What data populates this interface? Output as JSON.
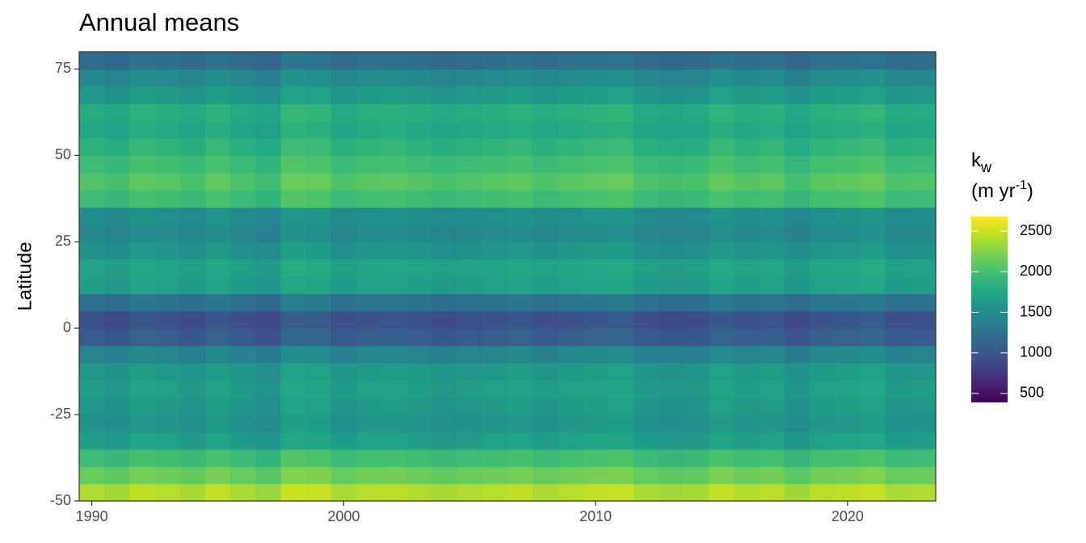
{
  "chart_data": {
    "type": "heatmap",
    "title": "Annual means",
    "y_label": "Latitude",
    "legend_title": {
      "main": "k",
      "sub": "w",
      "line2": "(m yr",
      "sup": "-1",
      "close": ")"
    },
    "x": [
      1990,
      1991,
      1992,
      1993,
      1994,
      1995,
      1996,
      1997,
      1998,
      1999,
      2000,
      2001,
      2002,
      2003,
      2004,
      2005,
      2006,
      2007,
      2008,
      2009,
      2010,
      2011,
      2012,
      2013,
      2014,
      2015,
      2016,
      2017,
      2018,
      2019,
      2020,
      2021,
      2022,
      2023
    ],
    "y": [
      -47.5,
      -42.5,
      -37.5,
      -32.5,
      -27.5,
      -22.5,
      -17.5,
      -12.5,
      -7.5,
      -2.5,
      2.5,
      7.5,
      12.5,
      17.5,
      22.5,
      27.5,
      32.5,
      37.5,
      42.5,
      47.5,
      52.5,
      57.5,
      62.5,
      67.5,
      72.5,
      77.5
    ],
    "values": [
      [
        2400,
        2350,
        2450,
        2420,
        2370,
        2460,
        2380,
        2320,
        2500,
        2480,
        2380,
        2430,
        2440,
        2410,
        2370,
        2400,
        2420,
        2450,
        2390,
        2430,
        2460,
        2480,
        2380,
        2350,
        2370,
        2470,
        2410,
        2440,
        2340,
        2430,
        2450,
        2490,
        2380,
        2400
      ],
      [
        2150,
        2100,
        2200,
        2170,
        2120,
        2210,
        2130,
        2070,
        2250,
        2230,
        2130,
        2180,
        2190,
        2160,
        2120,
        2150,
        2170,
        2200,
        2140,
        2180,
        2210,
        2230,
        2130,
        2100,
        2120,
        2220,
        2160,
        2190,
        2090,
        2180,
        2200,
        2240,
        2130,
        2150
      ],
      [
        1950,
        1900,
        2000,
        1970,
        1920,
        2010,
        1930,
        1870,
        2050,
        2030,
        1930,
        1980,
        1990,
        1960,
        1920,
        1950,
        1970,
        2000,
        1940,
        1980,
        2010,
        2030,
        1930,
        1900,
        1920,
        2020,
        1960,
        1990,
        1890,
        1980,
        2000,
        2040,
        1930,
        1950
      ],
      [
        1650,
        1600,
        1700,
        1670,
        1620,
        1710,
        1630,
        1570,
        1750,
        1730,
        1630,
        1680,
        1690,
        1660,
        1620,
        1650,
        1670,
        1700,
        1640,
        1680,
        1710,
        1730,
        1630,
        1600,
        1620,
        1720,
        1660,
        1690,
        1590,
        1680,
        1700,
        1740,
        1630,
        1650
      ],
      [
        1550,
        1500,
        1600,
        1570,
        1520,
        1610,
        1530,
        1470,
        1650,
        1630,
        1530,
        1580,
        1590,
        1560,
        1520,
        1550,
        1570,
        1600,
        1540,
        1580,
        1610,
        1630,
        1530,
        1500,
        1520,
        1620,
        1560,
        1590,
        1490,
        1580,
        1600,
        1640,
        1530,
        1550
      ],
      [
        1600,
        1550,
        1650,
        1620,
        1570,
        1660,
        1580,
        1520,
        1700,
        1680,
        1580,
        1630,
        1640,
        1610,
        1570,
        1600,
        1620,
        1650,
        1590,
        1630,
        1660,
        1680,
        1580,
        1550,
        1570,
        1670,
        1610,
        1640,
        1540,
        1630,
        1650,
        1690,
        1580,
        1600
      ],
      [
        1650,
        1600,
        1700,
        1670,
        1620,
        1710,
        1630,
        1570,
        1750,
        1730,
        1630,
        1680,
        1690,
        1660,
        1620,
        1650,
        1670,
        1700,
        1640,
        1680,
        1710,
        1730,
        1630,
        1600,
        1620,
        1720,
        1660,
        1690,
        1590,
        1680,
        1700,
        1740,
        1630,
        1650
      ],
      [
        1600,
        1550,
        1650,
        1620,
        1570,
        1660,
        1580,
        1520,
        1700,
        1680,
        1580,
        1630,
        1640,
        1610,
        1570,
        1600,
        1620,
        1650,
        1590,
        1630,
        1660,
        1680,
        1580,
        1550,
        1570,
        1670,
        1610,
        1640,
        1540,
        1630,
        1650,
        1690,
        1580,
        1600
      ],
      [
        1400,
        1350,
        1450,
        1420,
        1370,
        1460,
        1380,
        1320,
        1500,
        1480,
        1380,
        1430,
        1440,
        1410,
        1370,
        1400,
        1420,
        1450,
        1390,
        1430,
        1460,
        1480,
        1380,
        1350,
        1370,
        1470,
        1410,
        1440,
        1340,
        1430,
        1450,
        1490,
        1380,
        1400
      ],
      [
        1050,
        1000,
        1100,
        1070,
        1020,
        1110,
        1030,
        970,
        1150,
        1130,
        1030,
        1080,
        1090,
        1060,
        1020,
        1050,
        1070,
        1100,
        1040,
        1080,
        1110,
        1130,
        1030,
        1000,
        1020,
        1120,
        1060,
        1090,
        990,
        1080,
        1100,
        1140,
        1030,
        1050
      ],
      [
        950,
        900,
        1000,
        970,
        920,
        1010,
        930,
        870,
        1050,
        1030,
        930,
        980,
        990,
        960,
        920,
        950,
        970,
        1000,
        940,
        980,
        1010,
        1030,
        930,
        900,
        920,
        1020,
        960,
        990,
        890,
        980,
        1000,
        1040,
        930,
        950
      ],
      [
        1250,
        1200,
        1300,
        1270,
        1220,
        1310,
        1230,
        1170,
        1350,
        1330,
        1230,
        1280,
        1290,
        1260,
        1220,
        1250,
        1270,
        1300,
        1240,
        1280,
        1310,
        1330,
        1230,
        1200,
        1220,
        1320,
        1260,
        1290,
        1190,
        1280,
        1300,
        1340,
        1230,
        1250
      ],
      [
        1650,
        1600,
        1700,
        1670,
        1620,
        1710,
        1630,
        1570,
        1750,
        1730,
        1630,
        1680,
        1690,
        1660,
        1620,
        1650,
        1670,
        1700,
        1640,
        1680,
        1710,
        1730,
        1630,
        1600,
        1620,
        1720,
        1660,
        1690,
        1590,
        1680,
        1700,
        1740,
        1630,
        1650
      ],
      [
        1700,
        1650,
        1750,
        1720,
        1670,
        1760,
        1680,
        1620,
        1800,
        1780,
        1680,
        1730,
        1740,
        1710,
        1670,
        1700,
        1720,
        1750,
        1690,
        1730,
        1760,
        1780,
        1680,
        1650,
        1670,
        1770,
        1710,
        1740,
        1640,
        1730,
        1750,
        1790,
        1680,
        1700
      ],
      [
        1550,
        1500,
        1600,
        1570,
        1520,
        1610,
        1530,
        1470,
        1650,
        1630,
        1530,
        1580,
        1590,
        1560,
        1520,
        1550,
        1570,
        1600,
        1540,
        1580,
        1610,
        1630,
        1530,
        1500,
        1520,
        1620,
        1560,
        1590,
        1490,
        1580,
        1600,
        1640,
        1530,
        1550
      ],
      [
        1450,
        1400,
        1500,
        1470,
        1420,
        1510,
        1430,
        1370,
        1550,
        1530,
        1430,
        1480,
        1490,
        1460,
        1420,
        1450,
        1470,
        1500,
        1440,
        1480,
        1510,
        1530,
        1430,
        1400,
        1420,
        1520,
        1460,
        1490,
        1390,
        1480,
        1500,
        1540,
        1430,
        1450
      ],
      [
        1500,
        1450,
        1550,
        1520,
        1470,
        1560,
        1480,
        1420,
        1600,
        1580,
        1480,
        1530,
        1540,
        1510,
        1470,
        1500,
        1520,
        1550,
        1490,
        1530,
        1560,
        1580,
        1480,
        1450,
        1470,
        1570,
        1510,
        1540,
        1440,
        1530,
        1550,
        1590,
        1480,
        1500
      ],
      [
        1950,
        1900,
        2000,
        1970,
        1920,
        2010,
        1930,
        1870,
        2050,
        2030,
        1930,
        1980,
        1990,
        1960,
        1920,
        1950,
        1970,
        2000,
        1940,
        1980,
        2010,
        2030,
        1930,
        1900,
        1920,
        2020,
        1960,
        1990,
        1890,
        1980,
        2000,
        2040,
        1930,
        1950
      ],
      [
        2050,
        2000,
        2100,
        2070,
        2020,
        2110,
        2030,
        1970,
        2150,
        2130,
        2030,
        2080,
        2090,
        2060,
        2020,
        2050,
        2070,
        2100,
        2040,
        2080,
        2110,
        2130,
        2030,
        2000,
        2020,
        2120,
        2060,
        2090,
        1990,
        2080,
        2100,
        2140,
        2030,
        2050
      ],
      [
        1950,
        1900,
        2000,
        1970,
        1920,
        2010,
        1930,
        1870,
        2050,
        2030,
        1930,
        1980,
        1990,
        1960,
        1920,
        1950,
        1970,
        2000,
        1940,
        1980,
        2010,
        2030,
        1930,
        1900,
        1920,
        2020,
        1960,
        1990,
        1890,
        1980,
        2000,
        2040,
        1930,
        1950
      ],
      [
        1850,
        1800,
        1900,
        1870,
        1820,
        1910,
        1830,
        1770,
        1950,
        1930,
        1830,
        1880,
        1890,
        1860,
        1820,
        1850,
        1870,
        1900,
        1840,
        1880,
        1910,
        1930,
        1830,
        1800,
        1820,
        1920,
        1860,
        1890,
        1790,
        1880,
        1900,
        1940,
        1830,
        1850
      ],
      [
        1750,
        1700,
        1800,
        1770,
        1720,
        1810,
        1730,
        1670,
        1850,
        1830,
        1730,
        1780,
        1790,
        1760,
        1720,
        1750,
        1770,
        1800,
        1740,
        1780,
        1810,
        1830,
        1730,
        1700,
        1720,
        1820,
        1760,
        1790,
        1690,
        1780,
        1800,
        1840,
        1730,
        1750
      ],
      [
        1800,
        1750,
        1850,
        1820,
        1770,
        1860,
        1780,
        1720,
        1900,
        1880,
        1780,
        1830,
        1840,
        1810,
        1770,
        1800,
        1820,
        1850,
        1790,
        1830,
        1860,
        1880,
        1780,
        1750,
        1770,
        1870,
        1810,
        1840,
        1740,
        1830,
        1850,
        1890,
        1780,
        1800
      ],
      [
        1600,
        1550,
        1650,
        1620,
        1570,
        1660,
        1580,
        1520,
        1700,
        1680,
        1580,
        1630,
        1640,
        1610,
        1570,
        1600,
        1620,
        1650,
        1590,
        1630,
        1660,
        1680,
        1580,
        1550,
        1570,
        1670,
        1610,
        1640,
        1540,
        1630,
        1650,
        1690,
        1580,
        1600
      ],
      [
        1450,
        1400,
        1500,
        1470,
        1420,
        1510,
        1430,
        1370,
        1550,
        1530,
        1430,
        1480,
        1490,
        1460,
        1420,
        1450,
        1470,
        1500,
        1440,
        1480,
        1510,
        1530,
        1430,
        1400,
        1420,
        1520,
        1460,
        1490,
        1390,
        1480,
        1500,
        1540,
        1430,
        1450
      ],
      [
        1200,
        1150,
        1250,
        1220,
        1170,
        1260,
        1180,
        1120,
        1300,
        1280,
        1180,
        1230,
        1240,
        1210,
        1170,
        1200,
        1220,
        1250,
        1190,
        1230,
        1260,
        1280,
        1180,
        1150,
        1170,
        1270,
        1210,
        1240,
        1140,
        1230,
        1250,
        1290,
        1180,
        1200
      ]
    ],
    "xlim": [
      1989.5,
      2023.5
    ],
    "xticks": [
      1990,
      2000,
      2010,
      2020
    ],
    "ylim": [
      -50,
      80
    ],
    "yticks": [
      -50,
      -25,
      0,
      25,
      50,
      75
    ],
    "zlim": [
      390,
      2680
    ],
    "zticks": [
      500,
      1000,
      1500,
      2000,
      2500
    ],
    "colormap": [
      "#440154",
      "#482475",
      "#414487",
      "#355f8d",
      "#2a788e",
      "#21918c",
      "#22a884",
      "#44bf70",
      "#7ad151",
      "#bddf26",
      "#fde725"
    ]
  }
}
